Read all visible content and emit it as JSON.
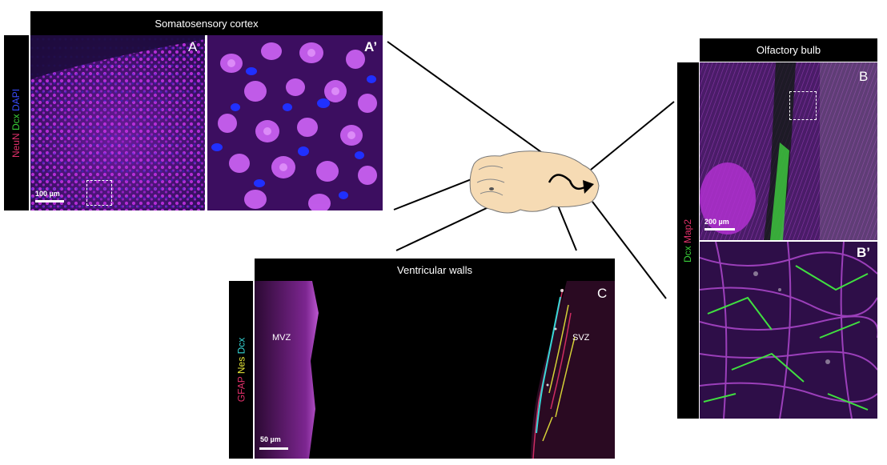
{
  "panels": {
    "cortex_title": "Somatosensory cortex",
    "cortex_stain": {
      "neun": "NeuN",
      "dcx": "Dcx",
      "dapi": "DAPI"
    },
    "label_a": "A",
    "label_a_prime": "A’",
    "scale_a": "100 µm",
    "ob_title": "Olfactory bulb",
    "ob_stain": {
      "dcx": "Dcx",
      "map2": "Map2"
    },
    "label_b": "B",
    "label_b_prime": "B’",
    "scale_b": "200 µm",
    "vw_title": "Ventricular walls",
    "vw_stain": {
      "gfap": "GFAP",
      "nes": "Nes",
      "dcx": "Dcx"
    },
    "label_c": "C",
    "mvz": "MVZ",
    "svz": "SVZ",
    "scale_c": "50 µm"
  },
  "colors": {
    "neun": "#e0306a",
    "dcx": "#3ad13a",
    "dapi": "#3a4cff",
    "map2": "#e0306a",
    "gfap": "#e0306a",
    "nes": "#e8e83a",
    "dcx_cyan": "#36d6d6",
    "brain": "#f6dbb4"
  }
}
